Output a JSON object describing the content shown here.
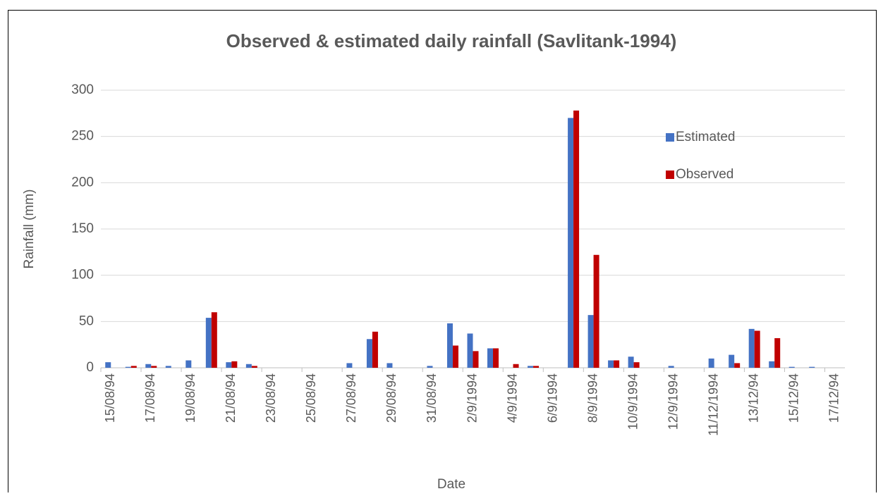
{
  "chart_data": {
    "type": "bar",
    "title": "Observed & estimated daily rainfall (Savlitank-1994)",
    "x_label": "Date",
    "y_label": "Rainfall (mm)",
    "categories": [
      "15/08/94",
      null,
      "17/08/94",
      null,
      "19/08/94",
      null,
      "21/08/94",
      null,
      "23/08/94",
      null,
      "25/08/94",
      null,
      "27/08/94",
      null,
      "29/08/94",
      null,
      "31/08/94",
      null,
      "2/9/1994",
      null,
      "4/9/1994",
      null,
      "6/9/1994",
      null,
      "8/9/1994",
      null,
      "10/9/1994",
      null,
      "12/9/1994",
      null,
      "11/12/1994",
      null,
      "13/12/94",
      null,
      "15/12/94",
      null,
      "17/12/94"
    ],
    "series": [
      {
        "name": "Estimated",
        "color": "#4472c4",
        "values": [
          6,
          1,
          4,
          2,
          8,
          54,
          6,
          4,
          0,
          0,
          0,
          0,
          5,
          31,
          5,
          0,
          2,
          48,
          37,
          21,
          0,
          2,
          0,
          270,
          57,
          8,
          12,
          0,
          2,
          0,
          10,
          14,
          42,
          7,
          1,
          1,
          0
        ]
      },
      {
        "name": "Observed",
        "color": "#c00000",
        "values": [
          0,
          2,
          2,
          0,
          0,
          60,
          7,
          2,
          0,
          0,
          0,
          0,
          0,
          39,
          0,
          0,
          0,
          24,
          18,
          21,
          4,
          2,
          0,
          278,
          122,
          8,
          6,
          0,
          0,
          0,
          0,
          5,
          40,
          32,
          0,
          0,
          0
        ]
      }
    ],
    "ylim": [
      0,
      300
    ],
    "yticks": [
      0,
      50,
      100,
      150,
      200,
      250,
      300
    ],
    "grid": true,
    "legend": "upper right"
  }
}
